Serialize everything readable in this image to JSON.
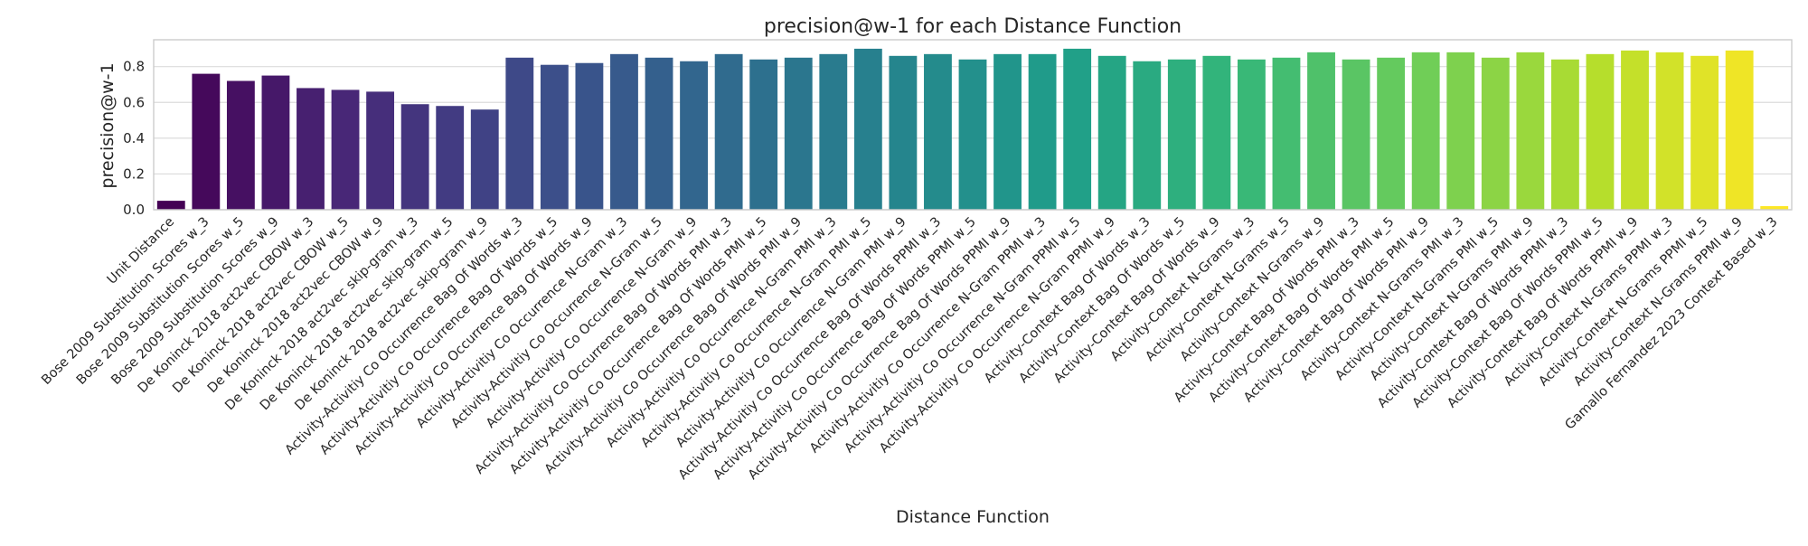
{
  "chart_data": {
    "type": "bar",
    "title": "precision@w-1 for each Distance Function",
    "xlabel": "Distance Function",
    "ylabel": "precision@w-1",
    "ylim": [
      0,
      0.95
    ],
    "yticks": [
      "0.0",
      "0.2",
      "0.4",
      "0.6",
      "0.8"
    ],
    "ytick_values": [
      0,
      0.2,
      0.4,
      0.6,
      0.8
    ],
    "grid": true,
    "legend": "none",
    "palette": "viridis",
    "categories": [
      "Unit Distance",
      "Bose 2009 Substitution Scores w_3",
      "Bose 2009 Substitution Scores w_5",
      "Bose 2009 Substitution Scores w_9",
      "De Koninck 2018 act2vec CBOW w_3",
      "De Koninck 2018 act2vec CBOW w_5",
      "De Koninck 2018 act2vec CBOW w_9",
      "De Koninck 2018 act2vec skip-gram w_3",
      "De Koninck 2018 act2vec skip-gram w_5",
      "De Koninck 2018 act2vec skip-gram w_9",
      "Activity-Activitiy Co Occurrence Bag Of Words w_3",
      "Activity-Activitiy Co Occurrence Bag Of Words w_5",
      "Activity-Activitiy Co Occurrence Bag Of Words w_9",
      "Activity-Activitiy Co Occurrence N-Gram w_3",
      "Activity-Activitiy Co Occurrence N-Gram w_5",
      "Activity-Activitiy Co Occurrence N-Gram w_9",
      "Activity-Activitiy Co Occurrence Bag Of Words PMI w_3",
      "Activity-Activitiy Co Occurrence Bag Of Words PMI w_5",
      "Activity-Activitiy Co Occurrence Bag Of Words PMI w_9",
      "Activity-Activitiy Co Occurrence N-Gram PMI w_3",
      "Activity-Activitiy Co Occurrence N-Gram PMI w_5",
      "Activity-Activitiy Co Occurrence N-Gram PMI w_9",
      "Activity-Activitiy Co Occurrence Bag Of Words PPMI w_3",
      "Activity-Activitiy Co Occurrence Bag Of Words PPMI w_5",
      "Activity-Activitiy Co Occurrence Bag Of Words PPMI w_9",
      "Activity-Activitiy Co Occurrence N-Gram PPMI w_3",
      "Activity-Activitiy Co Occurrence N-Gram PPMI w_5",
      "Activity-Activitiy Co Occurrence N-Gram PPMI w_9",
      "Activity-Context Bag Of Words w_3",
      "Activity-Context Bag Of Words w_5",
      "Activity-Context Bag Of Words w_9",
      "Activity-Context N-Grams w_3",
      "Activity-Context N-Grams w_5",
      "Activity-Context N-Grams w_9",
      "Activity-Context Bag Of Words PMI w_3",
      "Activity-Context Bag Of Words PMI w_5",
      "Activity-Context Bag Of Words PMI w_9",
      "Activity-Context N-Grams PMI w_3",
      "Activity-Context N-Grams PMI w_5",
      "Activity-Context N-Grams PMI w_9",
      "Activity-Context Bag Of Words PPMI w_3",
      "Activity-Context Bag Of Words PPMI w_5",
      "Activity-Context Bag Of Words PPMI w_9",
      "Activity-Context N-Grams PPMI w_3",
      "Activity-Context N-Grams PPMI w_5",
      "Activity-Context N-Grams PPMI w_9",
      "Gamallo Fernandez 2023 Context Based w_3"
    ],
    "values": [
      0.05,
      0.76,
      0.72,
      0.75,
      0.68,
      0.67,
      0.66,
      0.59,
      0.58,
      0.56,
      0.85,
      0.81,
      0.82,
      0.87,
      0.85,
      0.83,
      0.87,
      0.84,
      0.85,
      0.87,
      0.9,
      0.86,
      0.87,
      0.84,
      0.87,
      0.87,
      0.9,
      0.86,
      0.83,
      0.84,
      0.86,
      0.84,
      0.85,
      0.88,
      0.84,
      0.85,
      0.88,
      0.88,
      0.85,
      0.88,
      0.84,
      0.87,
      0.89,
      0.88,
      0.86,
      0.89,
      0.02
    ]
  }
}
